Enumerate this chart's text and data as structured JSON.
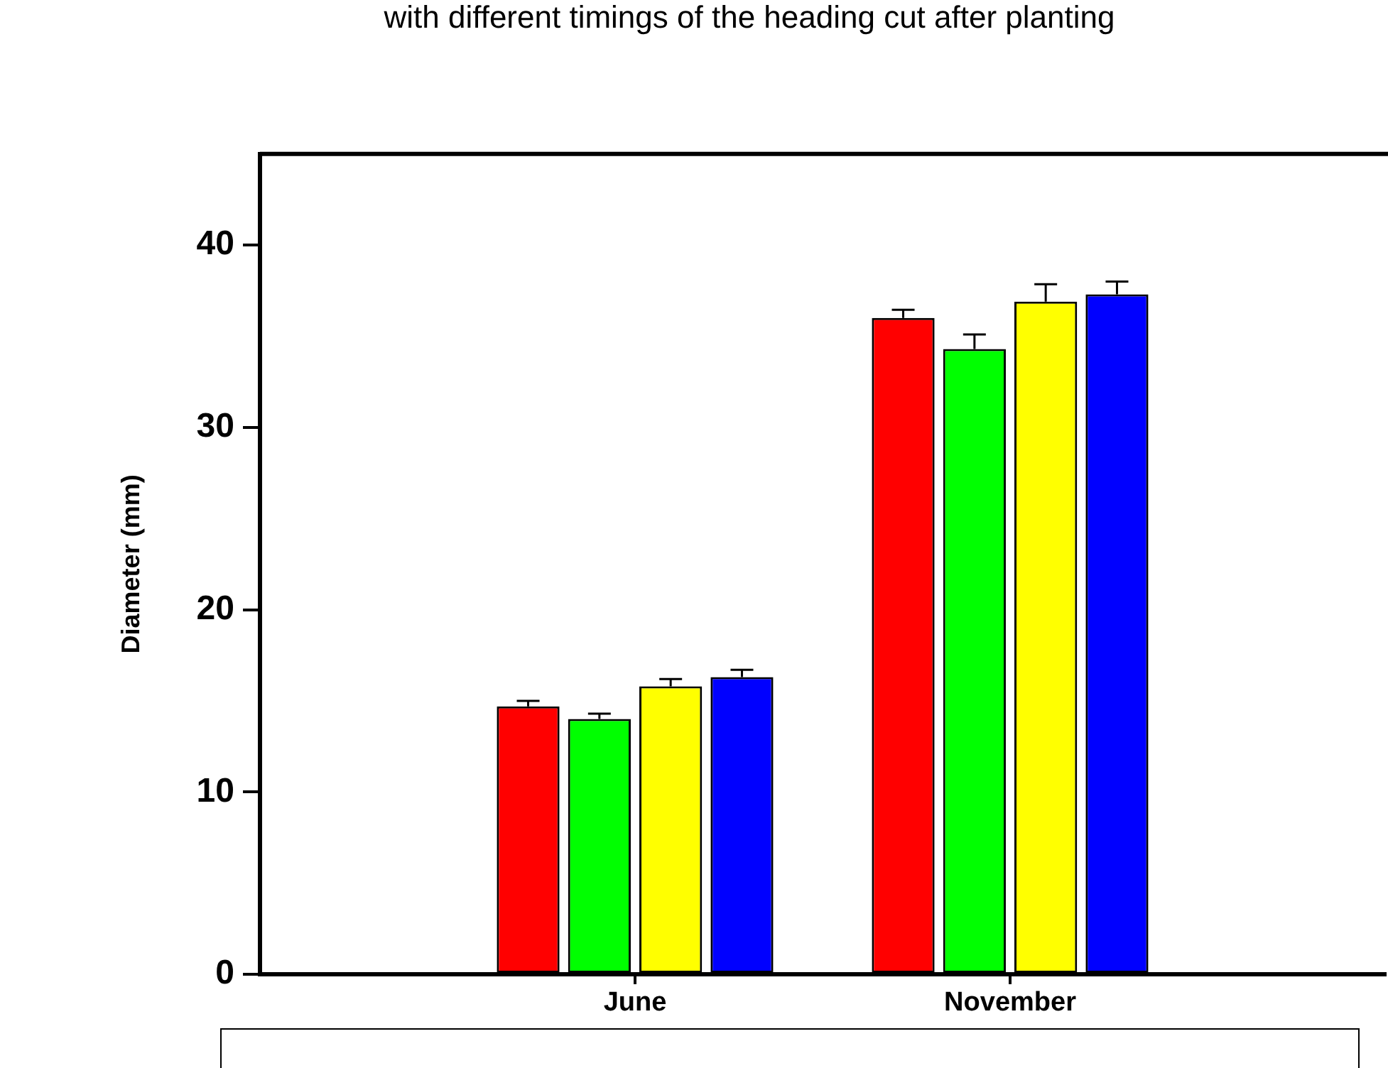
{
  "chart_data": {
    "type": "bar",
    "title": "with different timings of the heading cut after planting",
    "ylabel": "Diameter (mm)",
    "categories": [
      null,
      "June",
      "November",
      null
    ],
    "series": [
      {
        "color": "#ff0000",
        "values": [
          null,
          14.7,
          36.0,
          null
        ],
        "errors": [
          null,
          0.3,
          0.45,
          null
        ]
      },
      {
        "color": "#00ff00",
        "values": [
          null,
          14.0,
          34.3,
          null
        ],
        "errors": [
          null,
          0.3,
          0.8,
          null
        ]
      },
      {
        "color": "#ffff00",
        "values": [
          null,
          15.8,
          36.9,
          null
        ],
        "errors": [
          null,
          0.4,
          0.95,
          null
        ]
      },
      {
        "color": "#0000ff",
        "values": [
          null,
          16.3,
          37.3,
          null
        ],
        "errors": [
          null,
          0.4,
          0.7,
          null
        ]
      }
    ],
    "ylim": [
      0,
      45
    ],
    "yticks": [
      0,
      10,
      20,
      30,
      40
    ],
    "grid": false,
    "legend": false
  }
}
